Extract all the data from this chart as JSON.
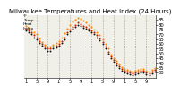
{
  "title": "Milwaukee Temperatures and Heat Index (24 Hours)",
  "ylim": [
    25,
    90
  ],
  "xlim": [
    -0.5,
    47.5
  ],
  "background_color": "#f0f0e8",
  "grid_color": "#888888",
  "color_temp": "#cc2200",
  "color_heat": "#ff8800",
  "color_dark": "#111111",
  "x_data": [
    0,
    1,
    2,
    3,
    4,
    5,
    6,
    7,
    8,
    9,
    10,
    11,
    12,
    13,
    14,
    15,
    16,
    17,
    18,
    19,
    20,
    21,
    22,
    23,
    24,
    25,
    26,
    27,
    28,
    29,
    30,
    31,
    32,
    33,
    34,
    35,
    36,
    37,
    38,
    39,
    40,
    41,
    42,
    43,
    44,
    45,
    46,
    47
  ],
  "y_temp": [
    76,
    74,
    72,
    69,
    67,
    63,
    60,
    57,
    55,
    55,
    57,
    58,
    60,
    63,
    67,
    72,
    75,
    78,
    80,
    82,
    81,
    79,
    78,
    76,
    74,
    72,
    69,
    66,
    62,
    57,
    52,
    47,
    43,
    40,
    37,
    34,
    32,
    31,
    30,
    29,
    30,
    31,
    32,
    32,
    30,
    29,
    31,
    33
  ],
  "y_heat": [
    79,
    77,
    75,
    72,
    70,
    66,
    62,
    59,
    57,
    57,
    59,
    61,
    63,
    67,
    71,
    76,
    80,
    83,
    85,
    87,
    86,
    84,
    82,
    80,
    78,
    75,
    72,
    69,
    65,
    60,
    55,
    49,
    45,
    42,
    39,
    36,
    34,
    33,
    32,
    31,
    32,
    33,
    34,
    34,
    32,
    31,
    33,
    35
  ],
  "y_dark": [
    74,
    72,
    70,
    67,
    65,
    61,
    58,
    55,
    53,
    53,
    55,
    56,
    58,
    61,
    65,
    70,
    73,
    76,
    78,
    80,
    79,
    77,
    76,
    74,
    72,
    70,
    67,
    64,
    60,
    55,
    50,
    45,
    41,
    38,
    35,
    32,
    30,
    29,
    28,
    27,
    28,
    29,
    30,
    30,
    28,
    27,
    29,
    31
  ],
  "show_dark": true,
  "x_ticks": [
    0,
    4,
    8,
    12,
    16,
    20,
    24,
    28,
    32,
    36,
    40,
    44
  ],
  "x_tick_labels": [
    "1",
    "5",
    "9",
    "1",
    "5",
    "9",
    "1",
    "5",
    "9",
    "1",
    "5",
    "9"
  ],
  "y_ticks": [
    30,
    35,
    40,
    45,
    50,
    55,
    60,
    65,
    70,
    75,
    80,
    85
  ],
  "vgrid_x": [
    4,
    8,
    12,
    16,
    20,
    24,
    28,
    32,
    36,
    40,
    44
  ],
  "title_fontsize": 5.0,
  "tick_fontsize": 3.8,
  "marker_size": 1.5,
  "lw": 0.0,
  "fig_bg": "#ffffff",
  "legend_lines": [
    "Temp",
    "Heat",
    "Index"
  ],
  "left_label": "°F\nTemp\nHeat\nIndex"
}
